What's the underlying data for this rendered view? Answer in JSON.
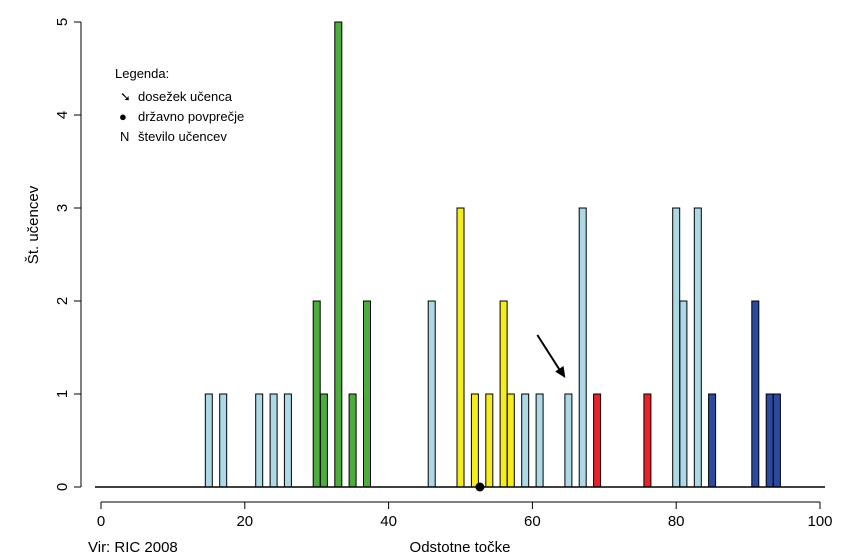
{
  "chart_data": {
    "type": "bar",
    "xlabel": "Odstotne točke",
    "ylabel": "Št. učencev",
    "xlim": [
      0,
      100
    ],
    "ylim": [
      0,
      5
    ],
    "xticks": [
      "0",
      "20",
      "40",
      "60",
      "80",
      "100"
    ],
    "yticks": [
      "0",
      "1",
      "2",
      "3",
      "4",
      "5"
    ],
    "grid": false,
    "source": "Vir: RIC 2008",
    "legend": {
      "title": "Legenda:",
      "placement": "top-left",
      "items": [
        {
          "symbol": "arrow",
          "glyph": "➘",
          "label": "dosežek učenca"
        },
        {
          "symbol": "dot",
          "glyph": "●",
          "label": "državno povprečje"
        },
        {
          "symbol": "N",
          "glyph": "N",
          "label": "število učencev"
        }
      ]
    },
    "colors": {
      "light_blue": "#add8e6",
      "green": "#4cac3c",
      "yellow": "#f4ec1c",
      "red": "#e8222a",
      "navy": "#2a4aa0",
      "outline": "#000000"
    },
    "bars": [
      {
        "x": 15,
        "value": 1,
        "color": "light_blue"
      },
      {
        "x": 17,
        "value": 1,
        "color": "light_blue"
      },
      {
        "x": 22,
        "value": 1,
        "color": "light_blue"
      },
      {
        "x": 24,
        "value": 1,
        "color": "light_blue"
      },
      {
        "x": 26,
        "value": 1,
        "color": "light_blue"
      },
      {
        "x": 30,
        "value": 2,
        "color": "green"
      },
      {
        "x": 31,
        "value": 1,
        "color": "green"
      },
      {
        "x": 33,
        "value": 5,
        "color": "green"
      },
      {
        "x": 35,
        "value": 1,
        "color": "green"
      },
      {
        "x": 37,
        "value": 2,
        "color": "green"
      },
      {
        "x": 46,
        "value": 2,
        "color": "light_blue"
      },
      {
        "x": 50,
        "value": 3,
        "color": "yellow"
      },
      {
        "x": 52,
        "value": 1,
        "color": "yellow"
      },
      {
        "x": 54,
        "value": 1,
        "color": "yellow"
      },
      {
        "x": 56,
        "value": 2,
        "color": "yellow"
      },
      {
        "x": 57,
        "value": 1,
        "color": "yellow"
      },
      {
        "x": 59,
        "value": 1,
        "color": "light_blue"
      },
      {
        "x": 61,
        "value": 1,
        "color": "light_blue"
      },
      {
        "x": 65,
        "value": 1,
        "color": "light_blue"
      },
      {
        "x": 67,
        "value": 3,
        "color": "light_blue"
      },
      {
        "x": 69,
        "value": 1,
        "color": "red"
      },
      {
        "x": 76,
        "value": 1,
        "color": "red"
      },
      {
        "x": 80,
        "value": 3,
        "color": "light_blue"
      },
      {
        "x": 81,
        "value": 2,
        "color": "light_blue"
      },
      {
        "x": 83,
        "value": 3,
        "color": "light_blue"
      },
      {
        "x": 85,
        "value": 1,
        "color": "navy"
      },
      {
        "x": 91,
        "value": 2,
        "color": "navy"
      },
      {
        "x": 93,
        "value": 1,
        "color": "navy"
      },
      {
        "x": 94,
        "value": 1,
        "color": "navy"
      }
    ],
    "national_average_x": 52.7,
    "student_result_x": 65
  }
}
